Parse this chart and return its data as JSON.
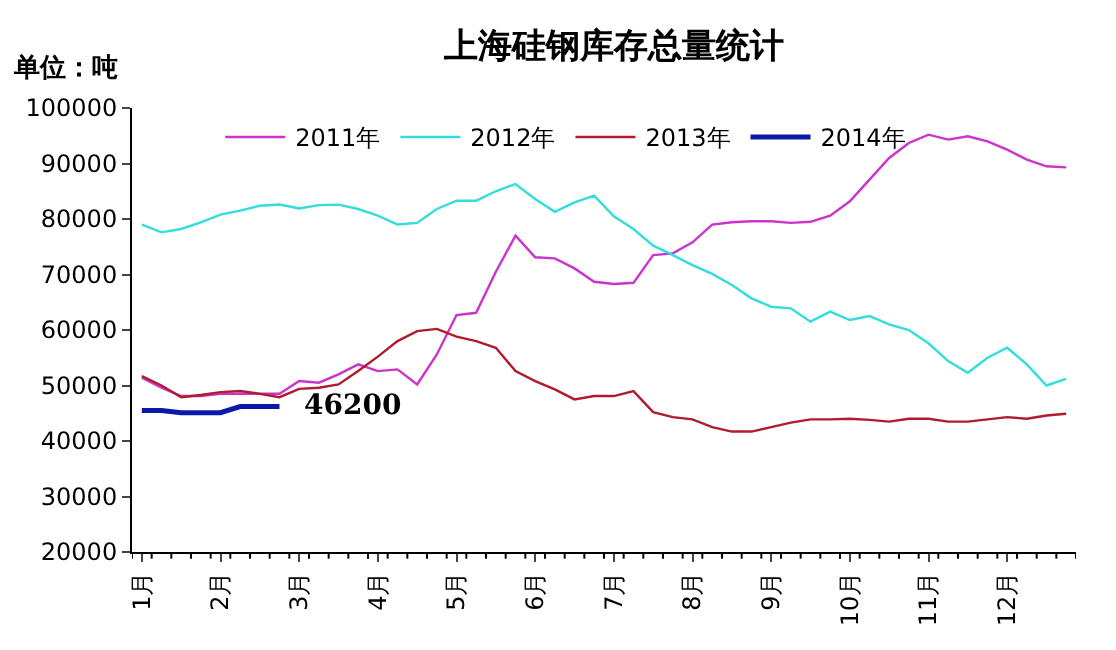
{
  "chart_data": {
    "type": "line",
    "title": "上海硅钢库存总量统计",
    "annotations": [
      "单位：吨",
      "46200"
    ],
    "categories": [
      "1月",
      null,
      null,
      null,
      "2月",
      null,
      null,
      null,
      "3月",
      null,
      null,
      null,
      "4月",
      null,
      null,
      null,
      "5月",
      null,
      null,
      null,
      "6月",
      null,
      null,
      null,
      "7月",
      null,
      null,
      null,
      "8月",
      null,
      null,
      null,
      "9月",
      null,
      null,
      null,
      "10月",
      null,
      null,
      null,
      "11月",
      null,
      null,
      null,
      "12月",
      null,
      null,
      null
    ],
    "series": [
      {
        "name": "2011年",
        "color": "#cc33cc",
        "values": [
          51400,
          49600,
          48100,
          48100,
          48500,
          48500,
          48500,
          48500,
          50800,
          50500,
          52000,
          53800,
          52600,
          52900,
          50200,
          55600,
          62700,
          63100,
          70500,
          77000,
          73100,
          72900,
          71100,
          68700,
          68300,
          68500,
          73500,
          73800,
          75800,
          79000,
          79400,
          79600,
          79600,
          79300,
          79500,
          80600,
          83200,
          87100,
          91000,
          93700,
          95200,
          94300,
          94900,
          94000,
          92500,
          90700,
          89500,
          89300
        ]
      },
      {
        "name": "2012年",
        "color": "#33dddd",
        "values": [
          79000,
          77600,
          78200,
          79400,
          80800,
          81500,
          82400,
          82600,
          81900,
          82500,
          82600,
          81800,
          80600,
          79000,
          79300,
          81800,
          83300,
          83300,
          85000,
          86300,
          83600,
          81300,
          83000,
          84200,
          80500,
          78200,
          75200,
          73500,
          71700,
          70100,
          68100,
          65700,
          64200,
          63900,
          61500,
          63300,
          61800,
          62500,
          61000,
          60000,
          57600,
          54400,
          52300,
          55000,
          56800,
          53800,
          50000,
          51200
        ]
      },
      {
        "name": "2013年",
        "color": "#b01c2e",
        "values": [
          51700,
          50000,
          47900,
          48300,
          48800,
          49000,
          48500,
          47900,
          49400,
          49600,
          50200,
          52600,
          55200,
          58000,
          59800,
          60200,
          58800,
          58000,
          56800,
          52600,
          50800,
          49300,
          47500,
          48100,
          48100,
          49000,
          45200,
          44300,
          43900,
          42500,
          41700,
          41700,
          42500,
          43300,
          43900,
          43900,
          44000,
          43800,
          43500,
          44000,
          44000,
          43500,
          43500,
          43900,
          44300,
          44000,
          44600,
          44900
        ]
      },
      {
        "name": "2014年",
        "color": "#0a1aa8",
        "values": [
          45500,
          45500,
          45100,
          45100,
          45100,
          46200,
          46200,
          46200,
          null,
          null,
          null,
          null,
          null,
          null,
          null,
          null,
          null,
          null,
          null,
          null,
          null,
          null,
          null,
          null,
          null,
          null,
          null,
          null,
          null,
          null,
          null,
          null,
          null,
          null,
          null,
          null,
          null,
          null,
          null,
          null,
          null,
          null,
          null,
          null,
          null,
          null,
          null,
          null
        ]
      }
    ],
    "ylim": [
      20000,
      100000
    ],
    "yticks": [
      20000,
      30000,
      40000,
      50000,
      60000,
      70000,
      80000,
      90000,
      100000
    ],
    "legend": "top",
    "marker": "none",
    "line_style": "solid"
  }
}
